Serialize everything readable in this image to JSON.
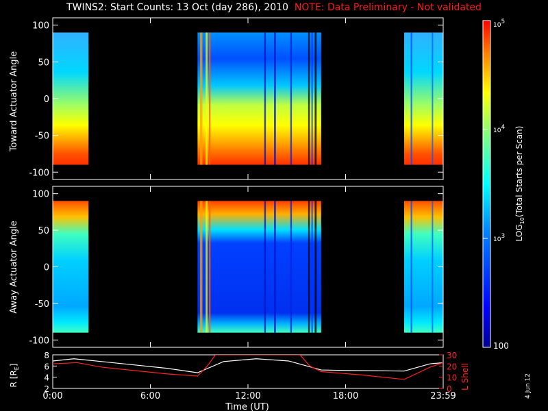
{
  "title": {
    "main": "TWINS2: Start Counts: 13 Oct (day 286), 2010",
    "note": "NOTE: Data Preliminary - Not validated"
  },
  "side_label": "4 Jun 12",
  "colors": {
    "note": "#ff1a1a",
    "no_data": "#000000",
    "r_line": "#ffffff",
    "lshell_line": "#ff2020"
  },
  "chart_data": [
    {
      "type": "heatmap",
      "ylabel": "Toward Actuator Angle",
      "ylim": [
        -110,
        110
      ],
      "yticks": [
        "100",
        "50",
        "0",
        "-50",
        "-100"
      ],
      "xlim": [
        0,
        24
      ],
      "data_intervals_ut": [
        [
          0.0,
          2.2
        ],
        [
          8.9,
          16.5
        ],
        [
          21.6,
          24.0
        ]
      ],
      "description": "counts highest (orange/red) near -75 to -90 deg, mid-range (green/yellow) near -10 to -50, lower (cyan/blue) above 30"
    },
    {
      "type": "heatmap",
      "ylabel": "Away Actuator Angle",
      "ylim": [
        -110,
        110
      ],
      "yticks": [
        "100",
        "50",
        "0",
        "-50",
        "-100"
      ],
      "xlim": [
        0,
        24
      ],
      "data_intervals_ut": [
        [
          0.0,
          2.2
        ],
        [
          8.9,
          16.5
        ],
        [
          21.6,
          24.0
        ]
      ],
      "description": "counts highest (orange/red) near 75 to 90 deg, low (blue) between -80 and 40 during 10-16 UT"
    },
    {
      "type": "line",
      "ylabel": "R [R_E]",
      "ylabel_parts": [
        "R [R",
        "E",
        "]"
      ],
      "y2label": "L Shell",
      "ylim": [
        2,
        8
      ],
      "yticks": [
        "2",
        "4",
        "6",
        "8"
      ],
      "y2lim": [
        0,
        30
      ],
      "y2ticks": [
        "0",
        "10",
        "20",
        "30"
      ],
      "xlabel": "Time (UT)",
      "xlim": [
        0,
        24
      ],
      "xticks": [
        "0:00",
        "6:00",
        "12:00",
        "18:00",
        "23:59"
      ],
      "series": [
        {
          "name": "R",
          "axis": "left",
          "x": [
            0,
            1.3,
            3,
            5,
            7,
            8.9,
            10.5,
            12.5,
            14.5,
            16.5,
            18,
            21.6,
            23.2,
            24
          ],
          "y": [
            6.9,
            7.3,
            6.8,
            6.2,
            5.6,
            4.8,
            6.8,
            7.3,
            6.9,
            5.3,
            5.2,
            5.1,
            6.4,
            6.6
          ]
        },
        {
          "name": "L Shell",
          "axis": "right",
          "x": [
            0,
            1.5,
            3,
            5,
            7,
            8.9,
            9.5,
            10.0,
            15.2,
            15.8,
            16.5,
            19,
            21.6,
            23.2,
            24
          ],
          "y": [
            22,
            23,
            19,
            16,
            13,
            11,
            20,
            30,
            30,
            20,
            15,
            12,
            8,
            19,
            23
          ]
        }
      ]
    }
  ],
  "colorbar": {
    "label_parts": [
      "LOG",
      "10",
      "(Total Starts per Scan)"
    ],
    "scale": "log",
    "range": [
      100,
      100000
    ],
    "tick_labels": [
      {
        "value": 100000,
        "base": "10",
        "exp": "5"
      },
      {
        "value": 10000,
        "base": "10",
        "exp": "4"
      },
      {
        "value": 1000,
        "base": "10",
        "exp": "3"
      },
      {
        "value": 100,
        "base": "100",
        "exp": ""
      }
    ]
  }
}
